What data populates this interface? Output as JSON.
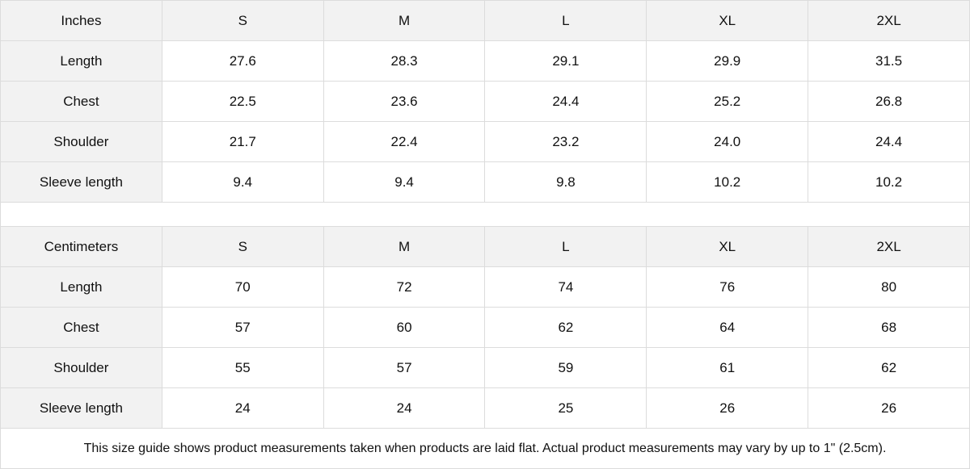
{
  "sizes": [
    "S",
    "M",
    "L",
    "XL",
    "2XL"
  ],
  "tables": [
    {
      "unit": "Inches",
      "rows": [
        {
          "label": "Length",
          "values": [
            "27.6",
            "28.3",
            "29.1",
            "29.9",
            "31.5"
          ]
        },
        {
          "label": "Chest",
          "values": [
            "22.5",
            "23.6",
            "24.4",
            "25.2",
            "26.8"
          ]
        },
        {
          "label": "Shoulder",
          "values": [
            "21.7",
            "22.4",
            "23.2",
            "24.0",
            "24.4"
          ]
        },
        {
          "label": "Sleeve length",
          "values": [
            "9.4",
            "9.4",
            "9.8",
            "10.2",
            "10.2"
          ]
        }
      ]
    },
    {
      "unit": "Centimeters",
      "rows": [
        {
          "label": "Length",
          "values": [
            "70",
            "72",
            "74",
            "76",
            "80"
          ]
        },
        {
          "label": "Chest",
          "values": [
            "57",
            "60",
            "62",
            "64",
            "68"
          ]
        },
        {
          "label": "Shoulder",
          "values": [
            "55",
            "57",
            "59",
            "61",
            "62"
          ]
        },
        {
          "label": "Sleeve length",
          "values": [
            "24",
            "24",
            "25",
            "26",
            "26"
          ]
        }
      ]
    }
  ],
  "note": "This size guide shows product measurements taken when products are laid flat.  Actual product measurements may vary by up to 1\" (2.5cm).",
  "colors": {
    "header_bg": "#f2f2f2",
    "border": "#dcdcdc"
  }
}
